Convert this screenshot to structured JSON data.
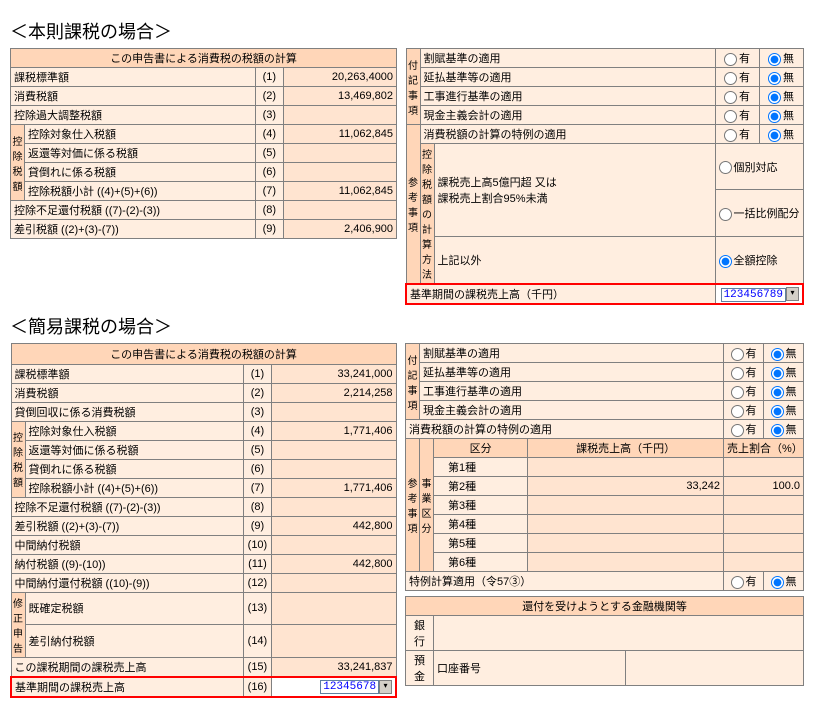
{
  "section1": {
    "title": "＜本則課税の場合＞",
    "left": {
      "header": "この申告書による消費税の税額の計算",
      "rows": [
        {
          "label": "課税標準額",
          "idx": "(1)",
          "val": "20,263,4000"
        },
        {
          "label": "消費税額",
          "idx": "(2)",
          "val": "13,469,802"
        },
        {
          "label": "控除過大調整税額",
          "idx": "(3)",
          "val": ""
        },
        {
          "label": "控除対象仕入税額",
          "idx": "(4)",
          "val": "11,062,845",
          "group": true
        },
        {
          "label": "返還等対価に係る税額",
          "idx": "(5)",
          "val": "",
          "group": true
        },
        {
          "label": "貸倒れに係る税額",
          "idx": "(6)",
          "val": "",
          "group": true
        },
        {
          "label": "控除税額小計 ((4)+(5)+(6))",
          "idx": "(7)",
          "val": "11,062,845",
          "group": true
        },
        {
          "label": "控除不足還付税額 ((7)-(2)-(3))",
          "idx": "(8)",
          "val": ""
        },
        {
          "label": "差引税額 ((2)+(3)-(7))",
          "idx": "(9)",
          "val": "2,406,900"
        }
      ],
      "group_label": "控除\n税額"
    },
    "right": {
      "fuki_label": "付記事項",
      "sanko_label": "参考事項",
      "fuki_rows": [
        {
          "label": "割賦基準の適用",
          "sel": "mu"
        },
        {
          "label": "延払基準等の適用",
          "sel": "mu"
        },
        {
          "label": "工事進行基準の適用",
          "sel": "mu"
        },
        {
          "label": "現金主義会計の適用",
          "sel": "mu"
        }
      ],
      "tokure": {
        "label": "消費税額の計算の特例の適用",
        "sel": "mu"
      },
      "kojo": {
        "header": "控除税額の計算方法",
        "cond1": "課税売上高5億円超 又は\n課税売上割合95%未満",
        "cond2": "上記以外",
        "opt1": "個別対応",
        "opt2": "一括比例配分",
        "opt3": "全額控除",
        "sel": "opt3"
      },
      "kijun": {
        "label": "基準期間の課税売上高（千円）",
        "value": "123456789"
      },
      "yu": "有",
      "mu": "無"
    }
  },
  "section2": {
    "title": "＜簡易課税の場合＞",
    "left": {
      "header": "この申告書による消費税の税額の計算",
      "group_label": "控除\n税額",
      "shusei_label": "修正申告",
      "rows": [
        {
          "label": "課税標準額",
          "idx": "(1)",
          "val": "33,241,000"
        },
        {
          "label": "消費税額",
          "idx": "(2)",
          "val": "2,214,258"
        },
        {
          "label": "貸倒回収に係る消費税額",
          "idx": "(3)",
          "val": ""
        },
        {
          "label": "控除対象仕入税額",
          "idx": "(4)",
          "val": "1,771,406",
          "group": true
        },
        {
          "label": "返還等対価に係る税額",
          "idx": "(5)",
          "val": "",
          "group": true
        },
        {
          "label": "貸倒れに係る税額",
          "idx": "(6)",
          "val": "",
          "group": true
        },
        {
          "label": "控除税額小計 ((4)+(5)+(6))",
          "idx": "(7)",
          "val": "1,771,406",
          "group": true
        },
        {
          "label": "控除不足還付税額 ((7)-(2)-(3))",
          "idx": "(8)",
          "val": ""
        },
        {
          "label": "差引税額 ((2)+(3)-(7))",
          "idx": "(9)",
          "val": "442,800"
        },
        {
          "label": "中間納付税額",
          "idx": "(10)",
          "val": ""
        },
        {
          "label": "納付税額 ((9)-(10))",
          "idx": "(11)",
          "val": "442,800"
        },
        {
          "label": "中間納付還付税額 ((10)-(9))",
          "idx": "(12)",
          "val": ""
        },
        {
          "label": "既確定税額",
          "idx": "(13)",
          "val": "",
          "shusei": true
        },
        {
          "label": "差引納付税額",
          "idx": "(14)",
          "val": "",
          "shusei": true
        },
        {
          "label": "この課税期間の課税売上高",
          "idx": "(15)",
          "val": "33,241,837"
        },
        {
          "label": "基準期間の課税売上高",
          "idx": "(16)",
          "val": "",
          "input": "12345678",
          "hl": true
        }
      ]
    },
    "right": {
      "fuki_label": "付記事項",
      "sanko_label": "参考事項",
      "fuki_rows": [
        {
          "label": "割賦基準の適用",
          "sel": "mu"
        },
        {
          "label": "延払基準等の適用",
          "sel": "mu"
        },
        {
          "label": "工事進行基準の適用",
          "sel": "mu"
        },
        {
          "label": "現金主義会計の適用",
          "sel": "mu"
        }
      ],
      "tokure": {
        "label": "消費税額の計算の特例の適用",
        "sel": "mu"
      },
      "biz": {
        "header_kubun": "区分",
        "header_uriage": "課税売上高（千円）",
        "header_wariai": "売上割合（%）",
        "col_label": "事業区分",
        "rows": [
          {
            "k": "第1種",
            "u": "",
            "w": ""
          },
          {
            "k": "第2種",
            "u": "33,242",
            "w": "100.0"
          },
          {
            "k": "第3種",
            "u": "",
            "w": ""
          },
          {
            "k": "第4種",
            "u": "",
            "w": ""
          },
          {
            "k": "第5種",
            "u": "",
            "w": ""
          },
          {
            "k": "第6種",
            "u": "",
            "w": ""
          }
        ]
      },
      "tokurei": {
        "label": "特例計算適用（令57③）",
        "sel": "mu"
      },
      "refund": {
        "header": "還付を受けようとする金融機関等",
        "bank": "銀行",
        "yokin": "預金",
        "kouza": "口座番号"
      },
      "yu": "有",
      "mu": "無"
    }
  }
}
